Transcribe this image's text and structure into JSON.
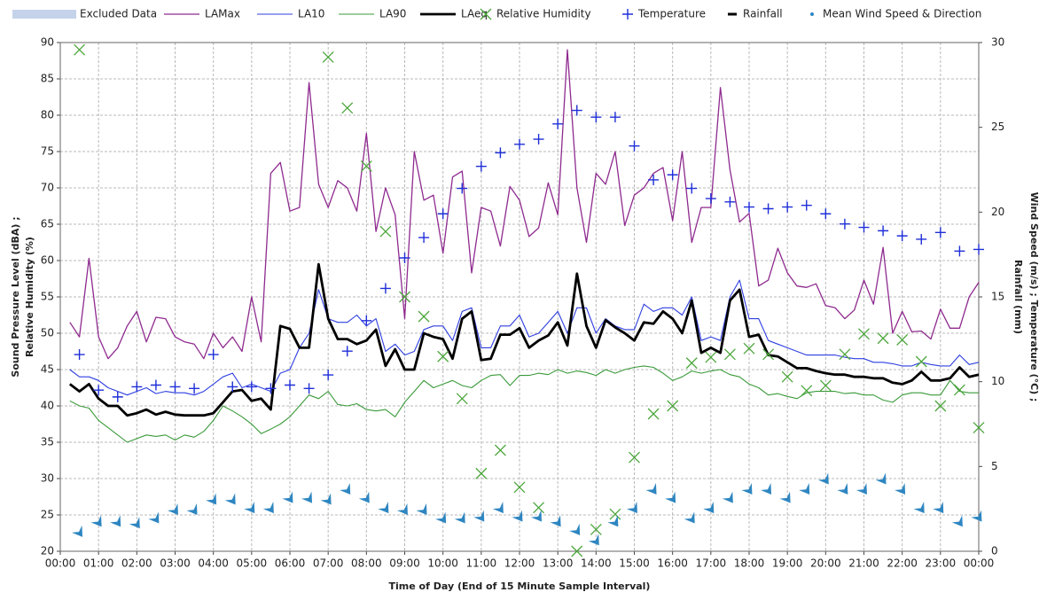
{
  "chart_data": {
    "type": "line",
    "xlabel": "Time of Day (End of 15 Minute Sample Interval)",
    "ylabel": [
      "Sound Pressure Level (dBA) ;",
      "Relative Humidity (%)"
    ],
    "y2label": [
      "Wind Speed (m/s) ; Temperature (°C) ;",
      "Rainfall (mm)"
    ],
    "legend": "top",
    "grid": true,
    "xlim": [
      0,
      24
    ],
    "xticks": [
      {
        "value": 0,
        "label": "00:00"
      },
      {
        "value": 1,
        "label": "01:00"
      },
      {
        "value": 2,
        "label": "02:00"
      },
      {
        "value": 3,
        "label": "03:00"
      },
      {
        "value": 4,
        "label": "04:00"
      },
      {
        "value": 5,
        "label": "05:00"
      },
      {
        "value": 6,
        "label": "06:00"
      },
      {
        "value": 7,
        "label": "07:00"
      },
      {
        "value": 8,
        "label": "08:00"
      },
      {
        "value": 9,
        "label": "09:00"
      },
      {
        "value": 10,
        "label": "10:00"
      },
      {
        "value": 11,
        "label": "11:00"
      },
      {
        "value": 12,
        "label": "12:00"
      },
      {
        "value": 13,
        "label": "13:00"
      },
      {
        "value": 14,
        "label": "14:00"
      },
      {
        "value": 15,
        "label": "15:00"
      },
      {
        "value": 16,
        "label": "16:00"
      },
      {
        "value": 17,
        "label": "17:00"
      },
      {
        "value": 18,
        "label": "18:00"
      },
      {
        "value": 19,
        "label": "19:00"
      },
      {
        "value": 20,
        "label": "20:00"
      },
      {
        "value": 21,
        "label": "21:00"
      },
      {
        "value": 22,
        "label": "22:00"
      },
      {
        "value": 23,
        "label": "23:00"
      },
      {
        "value": 24,
        "label": "00:00"
      }
    ],
    "ylim": [
      20,
      90
    ],
    "yticks": [
      20,
      25,
      30,
      35,
      40,
      45,
      50,
      55,
      60,
      65,
      70,
      75,
      80,
      85,
      90
    ],
    "y2lim": [
      0,
      30
    ],
    "y2ticks": [
      0,
      5,
      10,
      15,
      20,
      25,
      30
    ],
    "x": [
      0.25,
      0.5,
      0.75,
      1,
      1.25,
      1.5,
      1.75,
      2,
      2.25,
      2.5,
      2.75,
      3,
      3.25,
      3.5,
      3.75,
      4,
      4.25,
      4.5,
      4.75,
      5,
      5.25,
      5.5,
      5.75,
      6,
      6.25,
      6.5,
      6.75,
      7,
      7.25,
      7.5,
      7.75,
      8,
      8.25,
      8.5,
      8.75,
      9,
      9.25,
      9.5,
      9.75,
      10,
      10.25,
      10.5,
      10.75,
      11,
      11.25,
      11.5,
      11.75,
      12,
      12.25,
      12.5,
      12.75,
      13,
      13.25,
      13.5,
      13.75,
      14,
      14.25,
      14.5,
      14.75,
      15,
      15.25,
      15.5,
      15.75,
      16,
      16.25,
      16.5,
      16.75,
      17,
      17.25,
      17.5,
      17.75,
      18,
      18.25,
      18.5,
      18.75,
      19,
      19.25,
      19.5,
      19.75,
      20,
      20.25,
      20.5,
      20.75,
      21,
      21.25,
      21.5,
      21.75,
      22,
      22.25,
      22.5,
      22.75,
      23,
      23.25,
      23.5,
      23.75,
      24
    ],
    "series": [
      {
        "name": "Excluded Data",
        "type": "area",
        "color": "#c5d3ea",
        "values": [
          null,
          null,
          null,
          null,
          null,
          null,
          null,
          null,
          null,
          null,
          null,
          null,
          null,
          null,
          null,
          null,
          null,
          null,
          null,
          null,
          null,
          null,
          null,
          null,
          null,
          null,
          null,
          null,
          null,
          null,
          null,
          null,
          null,
          null,
          null,
          null,
          null,
          null,
          null,
          null,
          null,
          null,
          null,
          null,
          null,
          null,
          null,
          null,
          null,
          null,
          null,
          null,
          null,
          null,
          null,
          null,
          null,
          null,
          null,
          null,
          null,
          null,
          null,
          null,
          null,
          null,
          null,
          null,
          null,
          null,
          null,
          null,
          null,
          null,
          null,
          null,
          null,
          null,
          null,
          null,
          null,
          null,
          null,
          null,
          null,
          null,
          null,
          null,
          null,
          null,
          null,
          null,
          null,
          null,
          null,
          null
        ]
      },
      {
        "name": "LAMax",
        "type": "line",
        "color": "#8e2a8e",
        "width": 1.3,
        "values": [
          51.5,
          49.5,
          60.3,
          49.5,
          46.5,
          48,
          51,
          53,
          48.8,
          52.2,
          52,
          49.5,
          48.8,
          48.5,
          46.5,
          50,
          48,
          49.5,
          47.5,
          55,
          48.8,
          72,
          73.5,
          66.8,
          67.3,
          84.5,
          70.5,
          67.3,
          71,
          70,
          66.8,
          77.5,
          64,
          70,
          66.3,
          52,
          75,
          68.3,
          69,
          61,
          71.5,
          72.3,
          58.3,
          67.3,
          66.8,
          62,
          70.2,
          68.3,
          63.3,
          64.5,
          70.7,
          66.3,
          89,
          70,
          62.5,
          72,
          70.5,
          75,
          64.8,
          69,
          70,
          72,
          72.8,
          65.5,
          75,
          62.5,
          67.3,
          67.3,
          83.8,
          72.5,
          65.3,
          66.5,
          56.5,
          57.3,
          61.7,
          58.3,
          56.5,
          56.3,
          56.8,
          53.8,
          53.5,
          52,
          53.2,
          57.3,
          54,
          61.8,
          50,
          53,
          50.2,
          50.3,
          49.2,
          53.3,
          50.7,
          50.7,
          55,
          57
        ]
      },
      {
        "name": "LA10",
        "type": "line",
        "color": "#2f3fe0",
        "width": 1.1,
        "values": [
          45,
          44,
          44,
          43.5,
          42.5,
          42,
          41.5,
          42,
          42.5,
          41.7,
          42,
          41.8,
          41.8,
          41.5,
          42,
          43,
          44,
          44.5,
          42.5,
          43,
          42.5,
          42,
          44.5,
          45,
          48,
          50,
          56,
          52,
          51.5,
          51.5,
          52.5,
          51,
          52,
          47.5,
          48.5,
          47,
          47.5,
          50.5,
          51,
          51,
          49,
          53,
          53.5,
          48,
          48,
          51,
          51,
          52.5,
          49.5,
          50,
          51.5,
          53,
          50,
          53.5,
          53.5,
          50,
          52,
          51,
          50.5,
          50.5,
          54,
          53,
          53.5,
          53.5,
          52.5,
          55,
          49,
          49.5,
          49,
          55,
          57.3,
          52,
          52,
          49,
          48.5,
          48,
          47.5,
          47,
          47,
          47,
          47,
          46.7,
          46.5,
          46.5,
          46,
          46,
          45.8,
          45.5,
          45.5,
          46,
          45.7,
          45.5,
          45.5,
          47,
          45.7,
          46
        ]
      },
      {
        "name": "LA90",
        "type": "line",
        "color": "#3a9a3a",
        "width": 1.1,
        "values": [
          40.7,
          40,
          39.7,
          38,
          37,
          36,
          35,
          35.5,
          36,
          35.8,
          36,
          35.3,
          36,
          35.7,
          36.5,
          38,
          40,
          39.3,
          38.5,
          37.5,
          36.2,
          36.8,
          37.5,
          38.5,
          40,
          41.5,
          41,
          42,
          40.2,
          40,
          40.3,
          39.5,
          39.3,
          39.5,
          38.5,
          40.5,
          42,
          43.5,
          42.5,
          43,
          43.5,
          42.8,
          42.5,
          43.5,
          44.2,
          44.3,
          42.8,
          44.2,
          44.2,
          44.5,
          44.3,
          45,
          44.5,
          44.8,
          44.6,
          44.2,
          45,
          44.5,
          45,
          45.3,
          45.5,
          45.3,
          44.5,
          43.5,
          44,
          44.8,
          44.5,
          44.8,
          45,
          44.3,
          44,
          43,
          42.5,
          41.5,
          41.7,
          41.3,
          41,
          41.8,
          42,
          42,
          42,
          41.7,
          41.8,
          41.5,
          41.5,
          40.8,
          40.5,
          41.5,
          41.8,
          41.8,
          41.5,
          41.5,
          43.5,
          42,
          41.8,
          41.8
        ]
      },
      {
        "name": "LAeq",
        "type": "line",
        "color": "#000000",
        "width": 2.8,
        "values": [
          43,
          42,
          43,
          41,
          40,
          40,
          38.7,
          39,
          39.5,
          38.8,
          39.2,
          38.8,
          38.7,
          38.7,
          38.7,
          39,
          40.5,
          42,
          42.2,
          40.7,
          41,
          39.5,
          51,
          50.6,
          48,
          48,
          59.5,
          52,
          49.2,
          49.2,
          48.5,
          49,
          50.5,
          45.5,
          47.8,
          45,
          45,
          50,
          49.5,
          49.2,
          46.5,
          52,
          53,
          46.3,
          46.5,
          49.8,
          49.8,
          50.7,
          48,
          49,
          49.7,
          51.5,
          48.3,
          58.2,
          51,
          48,
          51.8,
          50.8,
          50,
          49,
          51.5,
          51.3,
          53,
          52,
          50,
          54.5,
          47.3,
          48,
          47.3,
          54.5,
          56,
          49.5,
          49.8,
          47,
          46.8,
          46,
          45.2,
          45.2,
          44.8,
          44.5,
          44.3,
          44.3,
          44,
          44,
          43.8,
          43.8,
          43.2,
          43,
          43.5,
          44.7,
          43.5,
          43.5,
          43.8,
          45.3,
          44,
          44.3
        ]
      },
      {
        "name": "Relative Humidity",
        "type": "scatter",
        "marker": "x",
        "color": "#4ca63c",
        "values": [
          null,
          89,
          null,
          null,
          null,
          null,
          null,
          null,
          null,
          null,
          null,
          null,
          null,
          null,
          null,
          null,
          null,
          null,
          null,
          null,
          null,
          null,
          null,
          null,
          null,
          null,
          null,
          88,
          null,
          81,
          null,
          73,
          null,
          64,
          null,
          55,
          null,
          52.3,
          null,
          46.8,
          null,
          41,
          null,
          30.7,
          null,
          33.9,
          null,
          28.8,
          null,
          26,
          null,
          null,
          null,
          20,
          null,
          23,
          null,
          25.1,
          null,
          32.9,
          null,
          38.9,
          null,
          40,
          null,
          45.9,
          null,
          46.7,
          null,
          47.1,
          null,
          47.9,
          null,
          47.1,
          null,
          44,
          null,
          42.1,
          null,
          42.8,
          null,
          47.1,
          null,
          49.9,
          null,
          49.3,
          null,
          49.1,
          null,
          46.1,
          null,
          40,
          null,
          42.2,
          null,
          37
        ]
      },
      {
        "name": "Temperature",
        "type": "scatter",
        "marker": "+",
        "axis": "y2",
        "color": "#1f2fd8",
        "values": [
          null,
          11.6,
          null,
          9.5,
          null,
          9.1,
          null,
          9.7,
          null,
          9.8,
          null,
          9.7,
          null,
          9.6,
          null,
          11.6,
          null,
          9.7,
          null,
          9.7,
          null,
          9.6,
          null,
          9.8,
          null,
          9.6,
          null,
          10.4,
          null,
          11.8,
          null,
          13.6,
          null,
          15.5,
          null,
          17.3,
          null,
          18.5,
          null,
          19.9,
          null,
          21.4,
          null,
          22.7,
          null,
          23.5,
          null,
          24.0,
          null,
          24.3,
          null,
          25.2,
          null,
          26.0,
          null,
          25.6,
          null,
          25.6,
          null,
          23.9,
          null,
          21.9,
          null,
          22.2,
          null,
          21.4,
          null,
          20.8,
          null,
          20.6,
          null,
          20.3,
          null,
          20.2,
          null,
          20.3,
          null,
          20.4,
          null,
          19.9,
          null,
          19.3,
          null,
          19.1,
          null,
          18.9,
          null,
          18.6,
          null,
          18.4,
          null,
          18.8,
          null,
          17.7,
          null,
          17.8
        ]
      },
      {
        "name": "Rainfall",
        "type": "scatter",
        "marker": "dash",
        "axis": "y2",
        "color": "#000000",
        "values": [
          null,
          null,
          null,
          null,
          null,
          null,
          null,
          null,
          null,
          null,
          null,
          null,
          null,
          null,
          null,
          null,
          null,
          null,
          null,
          null,
          null,
          null,
          null,
          null,
          null,
          null,
          null,
          null,
          null,
          null,
          null,
          null,
          null,
          null,
          null,
          null,
          null,
          null,
          null,
          null,
          null,
          null,
          null,
          null,
          null,
          null,
          null,
          null,
          null,
          null,
          null,
          null,
          null,
          null,
          null,
          null,
          null,
          null,
          null,
          null,
          null,
          null,
          null,
          null,
          null,
          null,
          null,
          null,
          null,
          null,
          null,
          null,
          null,
          null,
          null,
          null,
          null,
          null,
          null,
          null,
          null,
          null,
          null,
          null,
          null,
          null,
          null,
          null,
          null,
          null,
          null,
          null,
          null,
          null,
          null,
          null
        ]
      },
      {
        "name": "Mean Wind Speed & Direction",
        "type": "scatter",
        "marker": "chevron",
        "axis": "y2",
        "color": "#2e86c1",
        "values": [
          null,
          1.1,
          null,
          1.7,
          null,
          1.7,
          null,
          1.6,
          null,
          1.9,
          null,
          2.4,
          null,
          2.4,
          null,
          3.0,
          null,
          3.0,
          null,
          2.5,
          null,
          2.5,
          null,
          3.1,
          null,
          3.1,
          null,
          3.0,
          null,
          3.6,
          null,
          3.1,
          null,
          2.5,
          null,
          2.4,
          null,
          2.4,
          null,
          1.9,
          null,
          1.9,
          null,
          2.0,
          null,
          2.5,
          null,
          2.0,
          null,
          2.0,
          null,
          1.7,
          null,
          1.2,
          null,
          0.6,
          null,
          1.7,
          null,
          2.5,
          null,
          3.6,
          null,
          3.1,
          null,
          1.9,
          null,
          2.5,
          null,
          3.1,
          null,
          3.6,
          null,
          3.6,
          null,
          3.1,
          null,
          3.6,
          null,
          4.2,
          null,
          3.6,
          null,
          3.6,
          null,
          4.2,
          null,
          3.6,
          null,
          2.5,
          null,
          2.5,
          null,
          1.7,
          null,
          2.0
        ]
      }
    ]
  }
}
